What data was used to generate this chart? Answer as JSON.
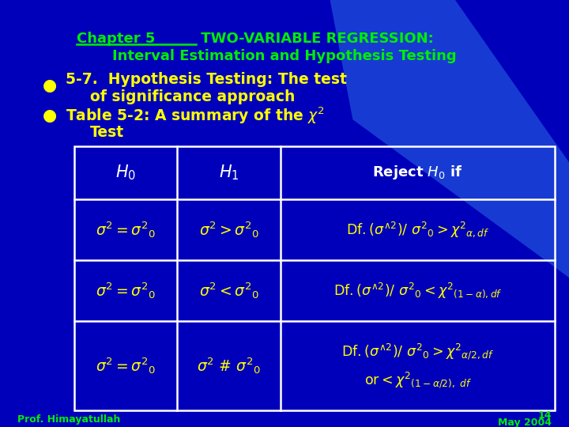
{
  "bg_color": "#0000bb",
  "title_color": "#00ee00",
  "bullet_color": "#ffff00",
  "table_border_color": "#ffffff",
  "table_header_color": "#ffffff",
  "table_data_color": "#ffff00",
  "footer_color": "#00ee00",
  "footer_left": "Prof. Himayatullah",
  "footer_right_top": "14",
  "footer_right_bot": "May 2004",
  "beam_color": "#2255dd",
  "beam_alpha": 0.7
}
